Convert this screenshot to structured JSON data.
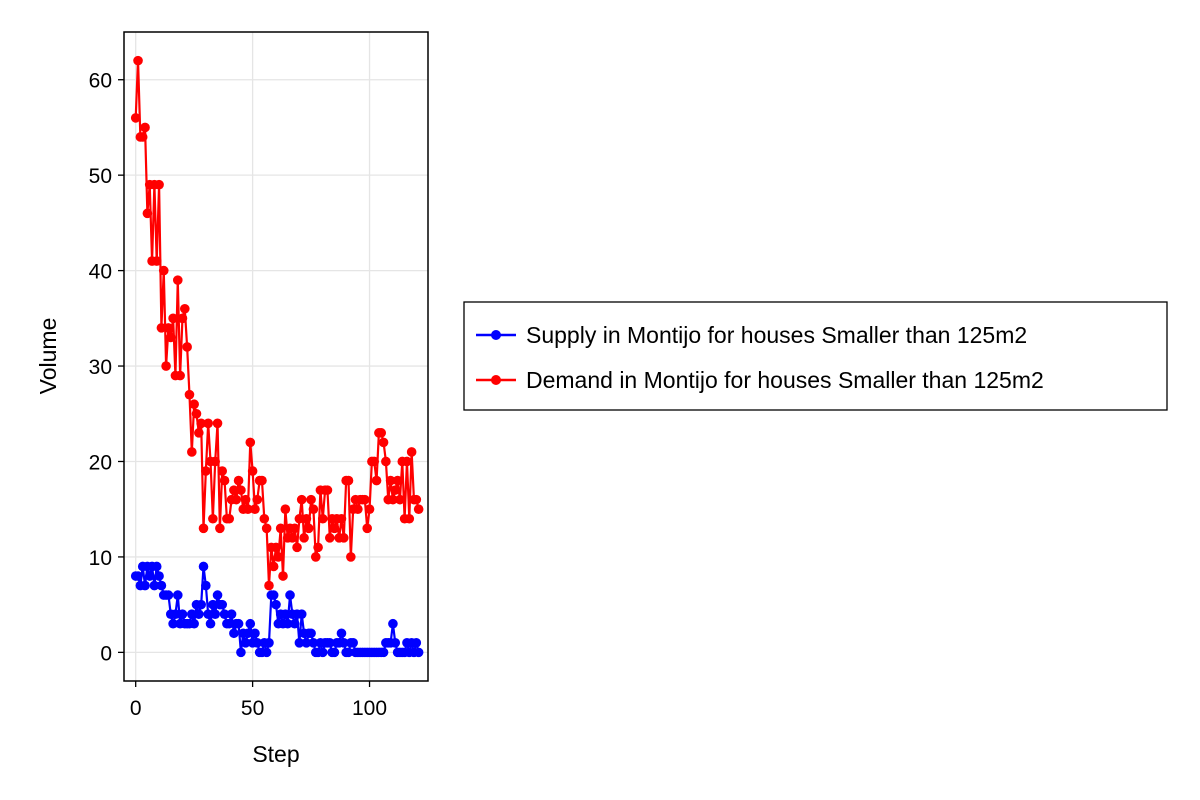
{
  "chart_data": {
    "type": "line",
    "xlabel": "Step",
    "ylabel": "Volume",
    "xlim": [
      -5,
      125
    ],
    "ylim": [
      -3,
      65
    ],
    "xticks": [
      0,
      50,
      100
    ],
    "yticks": [
      0,
      10,
      20,
      30,
      40,
      50,
      60
    ],
    "grid": true,
    "legend_position": "right",
    "series": [
      {
        "name": "Supply in Montijo for houses Smaller than 125m2",
        "color": "#0000ff",
        "values": [
          8,
          8,
          7,
          9,
          7,
          9,
          8,
          9,
          7,
          9,
          8,
          7,
          6,
          6,
          6,
          4,
          3,
          4,
          6,
          3,
          4,
          3,
          3,
          3,
          4,
          3,
          5,
          4,
          5,
          9,
          7,
          4,
          3,
          5,
          4,
          6,
          5,
          5,
          4,
          3,
          3,
          4,
          2,
          3,
          3,
          0,
          2,
          1,
          2,
          3,
          1,
          2,
          1,
          0,
          0,
          1,
          0,
          1,
          6,
          6,
          5,
          3,
          4,
          3,
          4,
          3,
          6,
          4,
          3,
          4,
          1,
          4,
          2,
          1,
          2,
          2,
          1,
          0,
          0,
          1,
          0,
          1,
          1,
          1,
          0,
          0,
          1,
          1,
          2,
          1,
          0,
          0,
          1,
          1,
          0,
          0,
          0,
          0,
          0,
          0,
          0,
          0,
          0,
          0,
          0,
          0,
          0,
          1,
          1,
          1,
          3,
          1,
          0,
          0,
          0,
          0,
          1,
          0,
          1,
          0,
          1,
          0
        ]
      },
      {
        "name": "Demand in Montijo for houses Smaller than 125m2",
        "color": "#ff0000",
        "values": [
          56,
          62,
          54,
          54,
          55,
          46,
          49,
          41,
          49,
          41,
          49,
          34,
          40,
          30,
          34,
          33,
          35,
          29,
          39,
          29,
          35,
          36,
          32,
          27,
          21,
          26,
          25,
          23,
          24,
          13,
          19,
          24,
          20,
          14,
          20,
          24,
          13,
          19,
          18,
          14,
          14,
          16,
          17,
          16,
          18,
          17,
          15,
          16,
          15,
          22,
          19,
          15,
          16,
          18,
          18,
          14,
          13,
          7,
          11,
          9,
          11,
          10,
          13,
          8,
          15,
          12,
          13,
          12,
          13,
          11,
          14,
          16,
          12,
          14,
          13,
          16,
          15,
          10,
          11,
          17,
          14,
          17,
          17,
          12,
          14,
          13,
          14,
          12,
          14,
          12,
          18,
          18,
          10,
          15,
          16,
          15,
          16,
          16,
          16,
          13,
          15,
          20,
          20,
          18,
          23,
          23,
          22,
          20,
          16,
          18,
          16,
          17,
          18,
          16,
          20,
          14,
          20,
          14,
          21,
          16,
          16,
          15
        ]
      }
    ]
  }
}
